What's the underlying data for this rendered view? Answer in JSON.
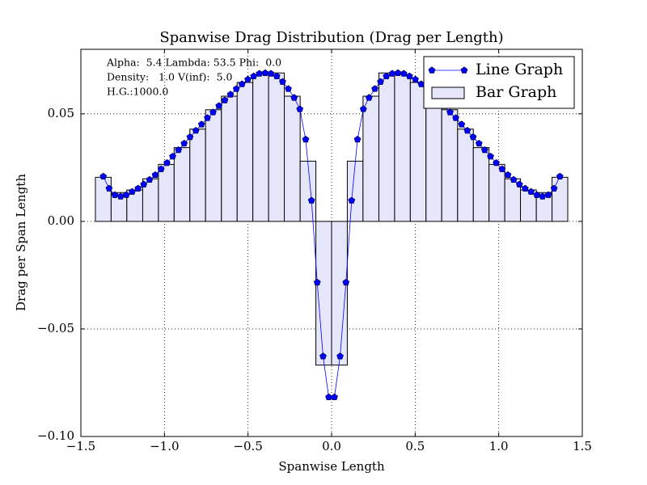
{
  "chart_data": {
    "type": "combo",
    "title": "Spanwise Drag Distribution (Drag per Length)",
    "xlabel": "Spanwise Length",
    "ylabel": "Drag per Span Length",
    "annotations": [
      "Alpha:  5.4 Lambda: 53.5 Phi:  0.0",
      "Density:   1.0 V(inf):  5.0",
      "H.G.:1000.0"
    ],
    "xlim": [
      -1.5,
      1.5
    ],
    "ylim": [
      -0.1,
      0.08
    ],
    "xticks": [
      {
        "value": -1.5,
        "label": "−1.5"
      },
      {
        "value": -1.0,
        "label": "−1.0"
      },
      {
        "value": -0.5,
        "label": "−0.5"
      },
      {
        "value": 0,
        "label": "0.0"
      },
      0.5,
      {
        "value": 1.0,
        "label": "1.0"
      },
      1.5
    ],
    "yticks": [
      {
        "value": -0.1,
        "label": "−0.10"
      },
      {
        "value": -0.05,
        "label": "−0.05"
      },
      {
        "value": 0,
        "label": "0.00"
      },
      {
        "value": 0.05,
        "label": "0.05"
      }
    ],
    "grid": true,
    "legend": "upper right",
    "series": [
      {
        "name": "Line Graph",
        "type": "line",
        "color": "#0000ff",
        "x": [
          -1.366,
          -1.331,
          -1.297,
          -1.262,
          -1.228,
          -1.193,
          -1.158,
          -1.124,
          -1.089,
          -1.055,
          -1.02,
          -0.985,
          -0.951,
          -0.916,
          -0.882,
          -0.847,
          -0.812,
          -0.778,
          -0.743,
          -0.709,
          -0.674,
          -0.639,
          -0.605,
          -0.57,
          -0.536,
          -0.501,
          -0.466,
          -0.432,
          -0.397,
          -0.363,
          -0.328,
          -0.293,
          -0.259,
          -0.224,
          -0.19,
          -0.155,
          -0.12,
          -0.086,
          -0.051,
          -0.017,
          0.017,
          0.051,
          0.086,
          0.12,
          0.155,
          0.19,
          0.224,
          0.259,
          0.293,
          0.328,
          0.363,
          0.397,
          0.432,
          0.466,
          0.501,
          0.536,
          0.57,
          0.605,
          0.639,
          0.674,
          0.709,
          0.743,
          0.778,
          0.812,
          0.847,
          0.882,
          0.916,
          0.951,
          0.985,
          1.02,
          1.055,
          1.089,
          1.124,
          1.158,
          1.193,
          1.228,
          1.262,
          1.297,
          1.331,
          1.366
        ],
        "values": [
          0.0209,
          0.0153,
          0.0123,
          0.0116,
          0.0123,
          0.0138,
          0.0153,
          0.0172,
          0.0194,
          0.0216,
          0.0243,
          0.0272,
          0.0302,
          0.0332,
          0.0362,
          0.0392,
          0.0422,
          0.0451,
          0.0481,
          0.0507,
          0.0537,
          0.0563,
          0.059,
          0.0616,
          0.0638,
          0.066,
          0.0675,
          0.0687,
          0.069,
          0.0687,
          0.0675,
          0.0649,
          0.0616,
          0.0575,
          0.0522,
          0.0381,
          0.0097,
          -0.0284,
          -0.0627,
          -0.0817,
          -0.0817,
          -0.0627,
          -0.0284,
          0.0097,
          0.0381,
          0.0522,
          0.0575,
          0.0616,
          0.0649,
          0.0675,
          0.0687,
          0.069,
          0.0687,
          0.0675,
          0.066,
          0.0638,
          0.0616,
          0.059,
          0.0563,
          0.0537,
          0.0507,
          0.0481,
          0.0451,
          0.0422,
          0.0392,
          0.0362,
          0.0332,
          0.0302,
          0.0272,
          0.0243,
          0.0216,
          0.0194,
          0.0172,
          0.0153,
          0.0138,
          0.0123,
          0.0116,
          0.0123,
          0.0153,
          0.0209
        ]
      },
      {
        "name": "Bar Graph",
        "type": "bar",
        "color": "#e6e6fa",
        "bins": [
          -1.413,
          -1.319,
          -1.225,
          -1.13,
          -1.036,
          -0.942,
          -0.848,
          -0.754,
          -0.659,
          -0.565,
          -0.471,
          -0.377,
          -0.283,
          -0.188,
          -0.094,
          0,
          0.094,
          0.188,
          0.283,
          0.377,
          0.471,
          0.565,
          0.659,
          0.754,
          0.848,
          0.942,
          1.036,
          1.13,
          1.225,
          1.319,
          1.413
        ],
        "values": [
          0.0205,
          0.0134,
          0.0146,
          0.0198,
          0.0265,
          0.0343,
          0.0429,
          0.0519,
          0.0582,
          0.0646,
          0.0683,
          0.069,
          0.0582,
          0.028,
          -0.0668,
          -0.0668,
          0.028,
          0.0582,
          0.069,
          0.0683,
          0.0646,
          0.0582,
          0.0519,
          0.0429,
          0.0343,
          0.0265,
          0.0198,
          0.0146,
          0.0134,
          0.0205
        ]
      }
    ]
  }
}
